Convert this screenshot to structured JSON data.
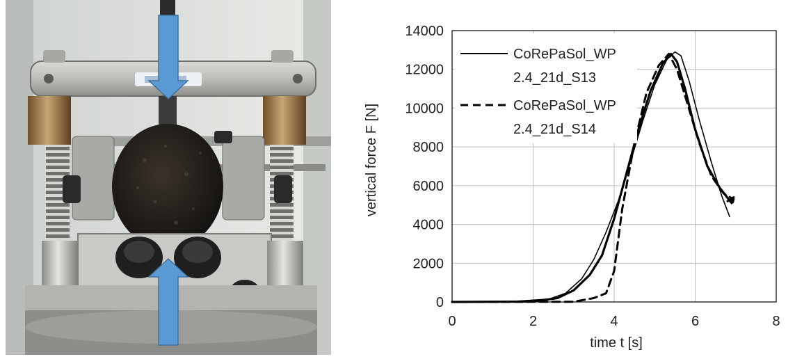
{
  "photo": {
    "icon": "test-apparatus-photo",
    "arrow_color": "#5b9bd5"
  },
  "chart_data": {
    "type": "line",
    "title": "",
    "xlabel": "time t [s]",
    "ylabel": "vertical force F [N]",
    "xlim": [
      0,
      8
    ],
    "ylim": [
      0,
      14000
    ],
    "xticks": [
      "0",
      "2",
      "4",
      "6",
      "8"
    ],
    "yticks": [
      "0",
      "2000",
      "4000",
      "6000",
      "8000",
      "10000",
      "12000",
      "14000"
    ],
    "grid": true,
    "legend_position": "top-left",
    "series": [
      {
        "name": "CoRePaSol_WP 2.4_21d_S13",
        "style": "solid",
        "color": "#000000",
        "points": [
          [
            0,
            0
          ],
          [
            1.5,
            30
          ],
          [
            2.4,
            150
          ],
          [
            2.8,
            450
          ],
          [
            3.2,
            1200
          ],
          [
            3.5,
            2200
          ],
          [
            3.8,
            3600
          ],
          [
            4.1,
            5200
          ],
          [
            4.4,
            7200
          ],
          [
            4.7,
            9300
          ],
          [
            5.0,
            11200
          ],
          [
            5.3,
            12500
          ],
          [
            5.5,
            12900
          ],
          [
            5.65,
            12700
          ],
          [
            5.85,
            11400
          ],
          [
            6.1,
            9400
          ],
          [
            6.4,
            7200
          ],
          [
            6.65,
            5500
          ],
          [
            6.85,
            4400
          ]
        ]
      },
      {
        "name": "",
        "style": "solid-thick",
        "color": "#000000",
        "points": [
          [
            0,
            0
          ],
          [
            2.0,
            20
          ],
          [
            2.6,
            200
          ],
          [
            3.0,
            600
          ],
          [
            3.4,
            1400
          ],
          [
            3.7,
            2400
          ],
          [
            4.0,
            4300
          ],
          [
            4.3,
            6600
          ],
          [
            4.6,
            8900
          ],
          [
            4.9,
            10900
          ],
          [
            5.2,
            12300
          ],
          [
            5.4,
            12800
          ],
          [
            5.55,
            12400
          ],
          [
            5.75,
            11000
          ],
          [
            6.0,
            8900
          ],
          [
            6.3,
            7000
          ],
          [
            6.6,
            5900
          ],
          [
            6.9,
            5100
          ],
          [
            6.95,
            5400
          ],
          [
            6.8,
            5200
          ]
        ]
      },
      {
        "name": "CoRePaSol_WP 2.4_21d_S14",
        "style": "dashed",
        "color": "#000000",
        "points": [
          [
            0,
            0
          ],
          [
            3.0,
            10
          ],
          [
            3.5,
            200
          ],
          [
            3.8,
            450
          ],
          [
            4.0,
            1600
          ],
          [
            4.2,
            4800
          ],
          [
            4.5,
            8200
          ],
          [
            4.8,
            10800
          ],
          [
            5.1,
            12200
          ],
          [
            5.35,
            12800
          ],
          [
            5.55,
            12000
          ],
          [
            5.8,
            10300
          ],
          [
            6.1,
            8200
          ],
          [
            6.4,
            6500
          ],
          [
            6.7,
            5600
          ],
          [
            6.95,
            5300
          ],
          [
            6.9,
            4900
          ]
        ]
      }
    ]
  }
}
